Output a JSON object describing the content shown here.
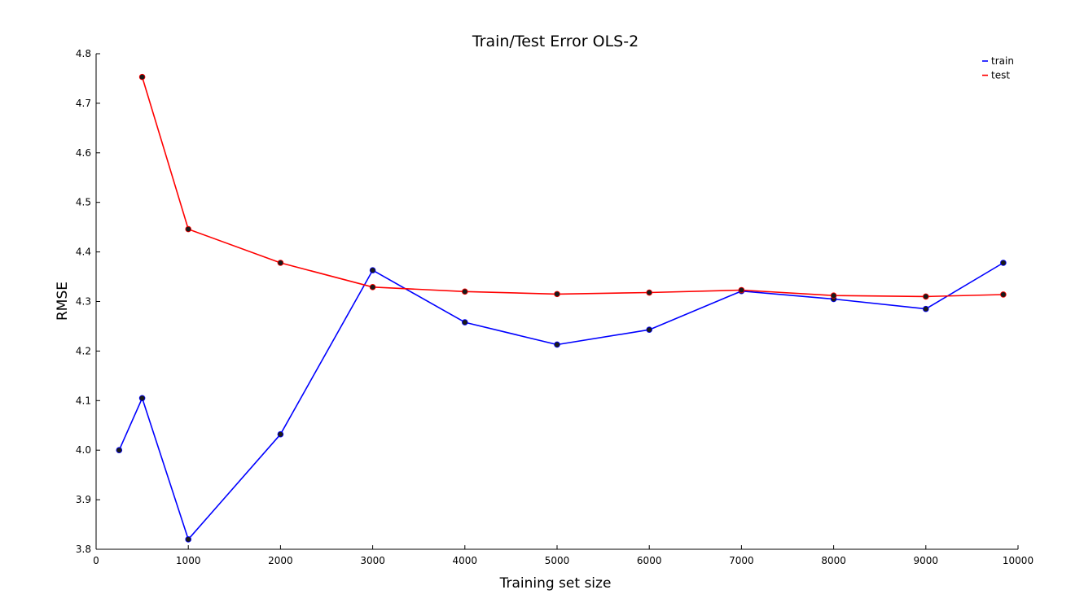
{
  "chart_data": {
    "type": "line",
    "title": "Train/Test Error OLS-2",
    "xlabel": "Training set size",
    "ylabel": "RMSE",
    "xlim": [
      0,
      10000
    ],
    "ylim": [
      3.8,
      4.8
    ],
    "xticks": [
      "0",
      "1000",
      "2000",
      "3000",
      "4000",
      "5000",
      "6000",
      "7000",
      "8000",
      "9000",
      "10000"
    ],
    "yticks": [
      "3.8",
      "3.9",
      "4.0",
      "4.1",
      "4.2",
      "4.3",
      "4.4",
      "4.5",
      "4.6",
      "4.7",
      "4.8"
    ],
    "grid": false,
    "legend_position": "top-right",
    "marker_color": "#1a1a1a",
    "series": [
      {
        "name": "train",
        "color": "#0000ff",
        "x": [
          250,
          500,
          1000,
          2000,
          3000,
          4000,
          5000,
          6000,
          7000,
          8000,
          9000,
          9840
        ],
        "values": [
          4.0,
          4.105,
          3.82,
          4.032,
          4.363,
          4.258,
          4.213,
          4.243,
          4.321,
          4.305,
          4.285,
          4.378
        ]
      },
      {
        "name": "test",
        "color": "#ff0000",
        "x": [
          500,
          1000,
          2000,
          3000,
          4000,
          5000,
          6000,
          7000,
          8000,
          9000,
          9840
        ],
        "values": [
          4.753,
          4.446,
          4.378,
          4.329,
          4.32,
          4.315,
          4.318,
          4.323,
          4.312,
          4.31,
          4.314
        ]
      }
    ]
  }
}
